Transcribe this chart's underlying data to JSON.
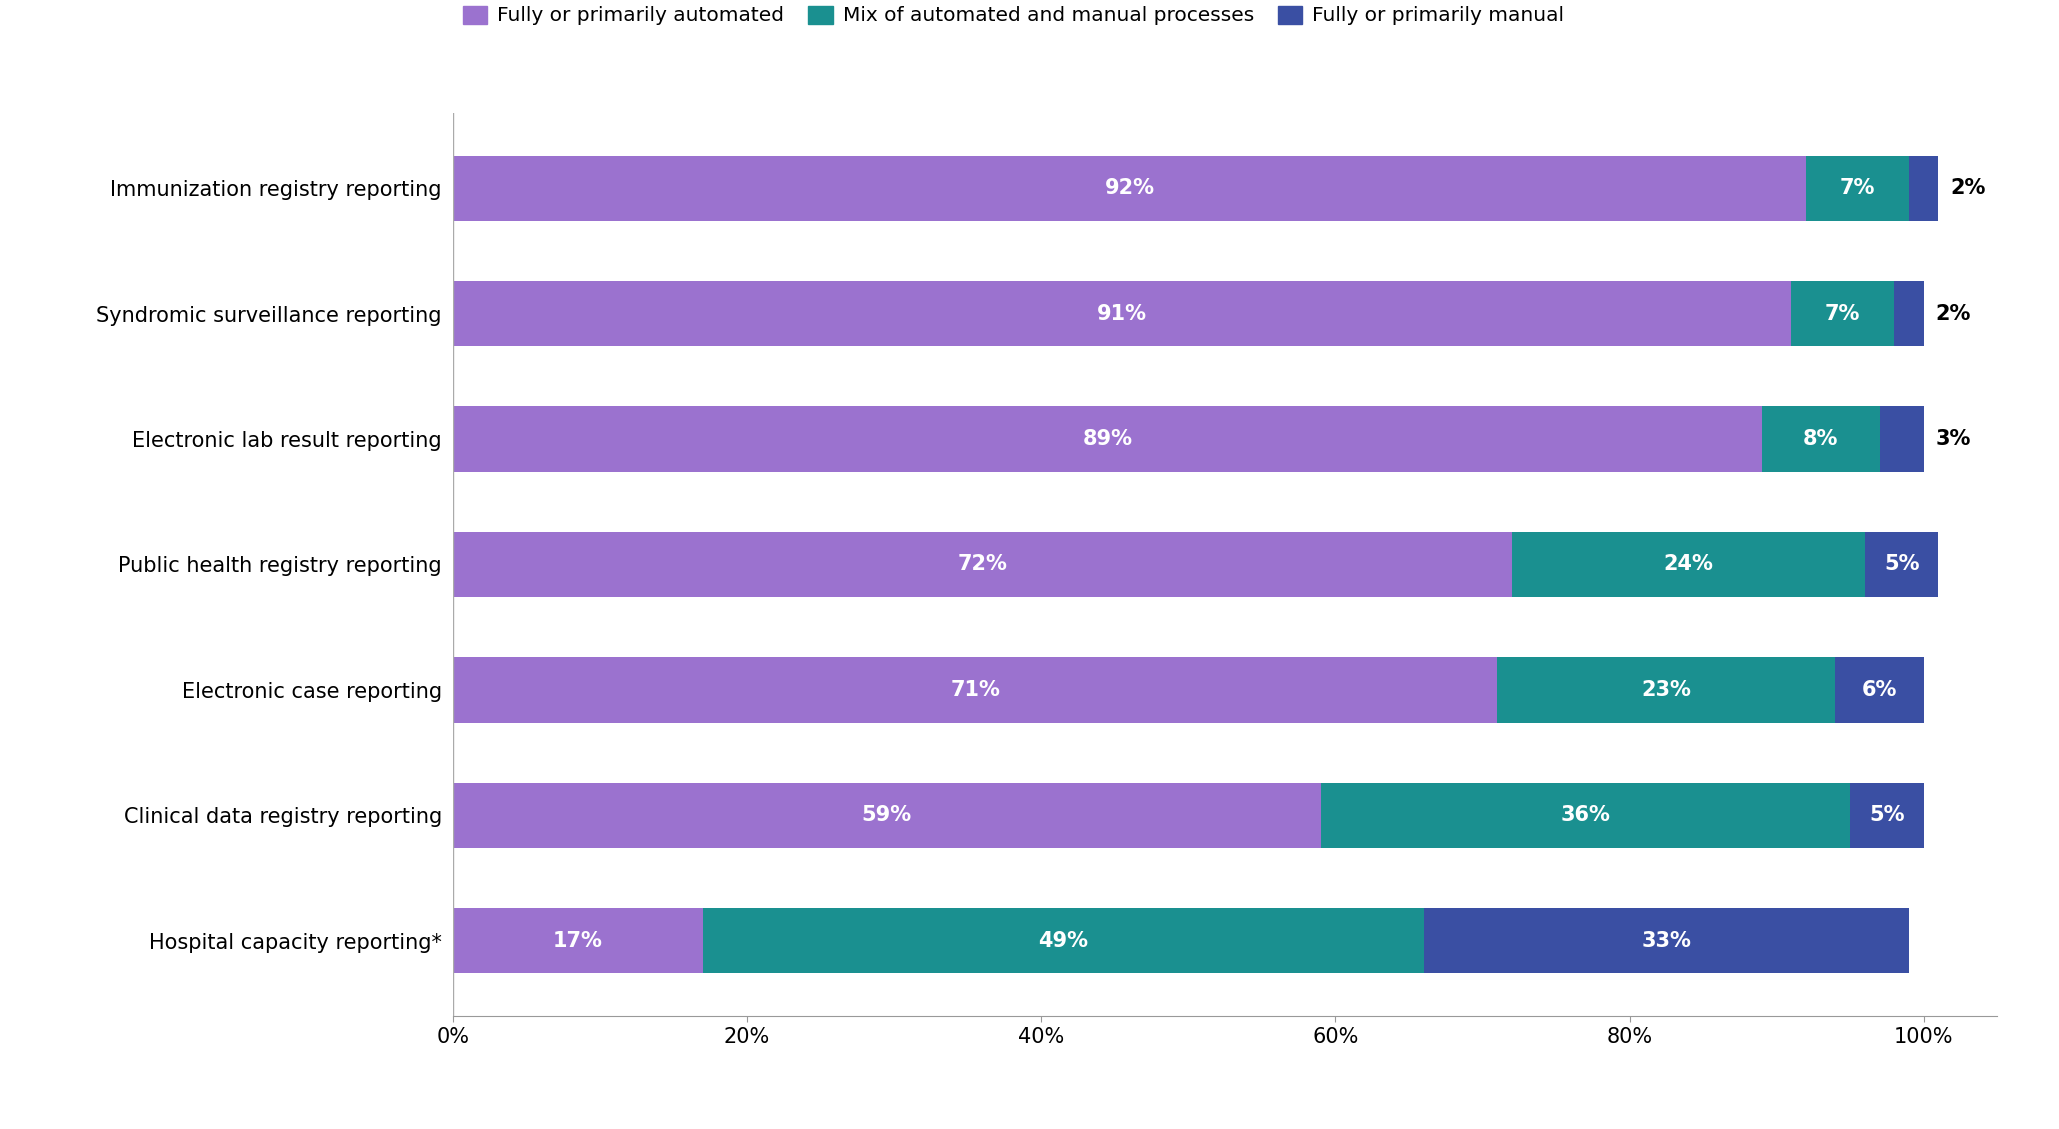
{
  "categories": [
    "Immunization registry reporting",
    "Syndromic surveillance reporting",
    "Electronic lab result reporting",
    "Public health registry reporting",
    "Electronic case reporting",
    "Clinical data registry reporting",
    "Hospital capacity reporting*"
  ],
  "automated": [
    92,
    91,
    89,
    72,
    71,
    59,
    17
  ],
  "mix": [
    7,
    7,
    8,
    24,
    23,
    36,
    49
  ],
  "manual": [
    2,
    2,
    3,
    5,
    6,
    5,
    33
  ],
  "color_automated": "#9b72cf",
  "color_mix": "#1a9090",
  "color_manual": "#3a4fa3",
  "label_automated": "Fully or primarily automated",
  "label_mix": "Mix of automated and manual processes",
  "label_manual": "Fully or primarily manual",
  "bar_height": 0.52,
  "xticks": [
    0,
    20,
    40,
    60,
    80,
    100
  ],
  "xticklabels": [
    "0%",
    "20%",
    "40%",
    "60%",
    "80%",
    "100%"
  ],
  "figure_width": 20.59,
  "figure_height": 11.29,
  "dpi": 100
}
